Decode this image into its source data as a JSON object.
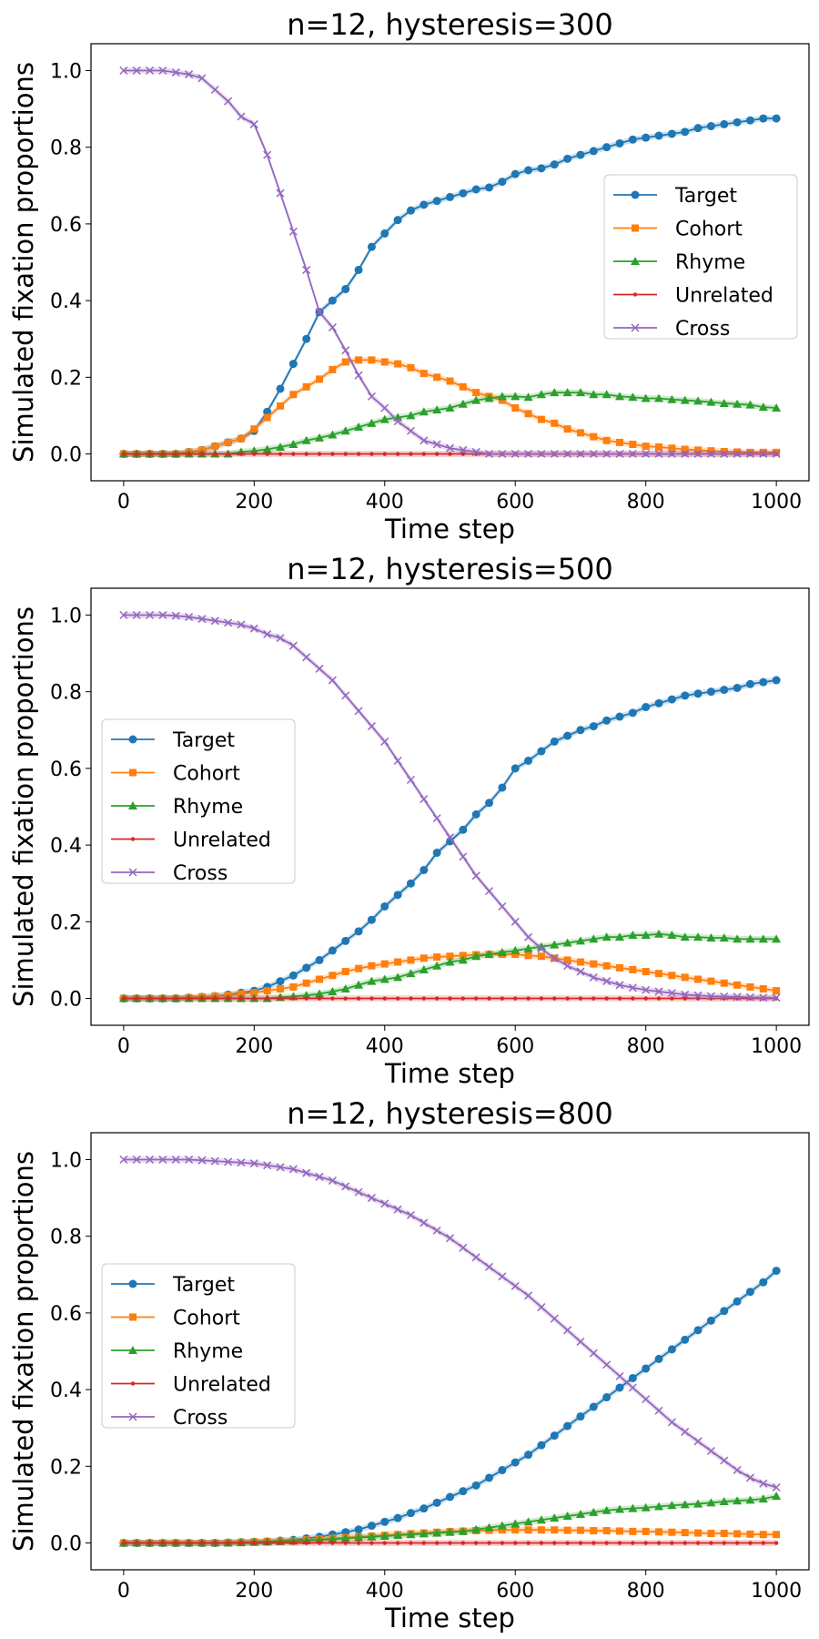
{
  "colors": {
    "Target": "#1f77b4",
    "Cohort": "#ff7f0e",
    "Rhyme": "#2ca02c",
    "Unrelated": "#d62728",
    "Cross": "#9467bd"
  },
  "markers": {
    "Target": "circle",
    "Cohort": "square",
    "Rhyme": "triangle",
    "Unrelated": "dot",
    "Cross": "x"
  },
  "chart_data": [
    {
      "type": "line",
      "title": "n=12, hysteresis=300",
      "xlabel": "Time step",
      "ylabel": "Simulated fixation proportions",
      "xlim": [
        -50,
        1050
      ],
      "ylim": [
        -0.07,
        1.07
      ],
      "xticks": [
        "0",
        "200",
        "400",
        "600",
        "800",
        "1000"
      ],
      "yticks": [
        "0.0",
        "0.2",
        "0.4",
        "0.6",
        "0.8",
        "1.0"
      ],
      "legend_position": "right",
      "grid": false,
      "x": [
        0,
        20,
        40,
        60,
        80,
        100,
        120,
        140,
        160,
        180,
        200,
        220,
        240,
        260,
        280,
        300,
        320,
        340,
        360,
        380,
        400,
        420,
        440,
        460,
        480,
        500,
        520,
        540,
        560,
        580,
        600,
        620,
        640,
        660,
        680,
        700,
        720,
        740,
        760,
        780,
        800,
        820,
        840,
        860,
        880,
        900,
        920,
        940,
        960,
        980,
        1000
      ],
      "series": [
        {
          "name": "Target",
          "values": [
            0,
            0,
            0,
            0,
            0,
            0.005,
            0.01,
            0.02,
            0.03,
            0.04,
            0.06,
            0.11,
            0.17,
            0.235,
            0.3,
            0.37,
            0.4,
            0.43,
            0.48,
            0.54,
            0.575,
            0.61,
            0.635,
            0.65,
            0.66,
            0.67,
            0.68,
            0.69,
            0.695,
            0.71,
            0.73,
            0.74,
            0.745,
            0.755,
            0.77,
            0.78,
            0.79,
            0.8,
            0.81,
            0.82,
            0.825,
            0.83,
            0.835,
            0.84,
            0.85,
            0.855,
            0.86,
            0.865,
            0.87,
            0.875,
            0.875
          ]
        },
        {
          "name": "Cohort",
          "values": [
            0,
            0,
            0,
            0,
            0,
            0.005,
            0.01,
            0.02,
            0.03,
            0.04,
            0.065,
            0.095,
            0.125,
            0.155,
            0.175,
            0.195,
            0.22,
            0.24,
            0.245,
            0.245,
            0.24,
            0.235,
            0.225,
            0.21,
            0.2,
            0.19,
            0.175,
            0.16,
            0.15,
            0.14,
            0.12,
            0.105,
            0.09,
            0.08,
            0.065,
            0.055,
            0.045,
            0.035,
            0.03,
            0.025,
            0.02,
            0.018,
            0.015,
            0.012,
            0.01,
            0.008,
            0.006,
            0.005,
            0.004,
            0.004,
            0.004
          ]
        },
        {
          "name": "Rhyme",
          "values": [
            0,
            0,
            0,
            0,
            0,
            0,
            0,
            0,
            0,
            0.005,
            0.008,
            0.012,
            0.018,
            0.025,
            0.035,
            0.042,
            0.05,
            0.06,
            0.07,
            0.08,
            0.09,
            0.095,
            0.1,
            0.11,
            0.115,
            0.12,
            0.13,
            0.14,
            0.145,
            0.15,
            0.15,
            0.148,
            0.155,
            0.16,
            0.16,
            0.16,
            0.155,
            0.155,
            0.15,
            0.148,
            0.145,
            0.145,
            0.142,
            0.14,
            0.138,
            0.135,
            0.132,
            0.13,
            0.128,
            0.122,
            0.12
          ]
        },
        {
          "name": "Unrelated",
          "values": [
            0,
            0,
            0,
            0,
            0,
            0,
            0,
            0,
            0,
            0,
            0,
            0,
            0,
            0,
            0,
            0,
            0,
            0,
            0,
            0,
            0,
            0,
            0,
            0,
            0,
            0,
            0,
            0,
            0,
            0,
            0,
            0,
            0,
            0,
            0,
            0,
            0,
            0,
            0,
            0,
            0,
            0,
            0,
            0,
            0,
            0,
            0,
            0,
            0,
            0,
            0
          ]
        },
        {
          "name": "Cross",
          "values": [
            1.0,
            1.0,
            1.0,
            1.0,
            0.995,
            0.99,
            0.98,
            0.95,
            0.92,
            0.88,
            0.86,
            0.78,
            0.68,
            0.58,
            0.48,
            0.37,
            0.33,
            0.27,
            0.205,
            0.15,
            0.12,
            0.085,
            0.06,
            0.035,
            0.025,
            0.015,
            0.01,
            0.005,
            0,
            0,
            0,
            0,
            0,
            0,
            0,
            0,
            0,
            0,
            0,
            0,
            0,
            0,
            0,
            0,
            0,
            0,
            0,
            0,
            0,
            0,
            0
          ]
        }
      ]
    },
    {
      "type": "line",
      "title": "n=12, hysteresis=500",
      "xlabel": "Time step",
      "ylabel": "Simulated fixation proportions",
      "xlim": [
        -50,
        1050
      ],
      "ylim": [
        -0.07,
        1.07
      ],
      "xticks": [
        "0",
        "200",
        "400",
        "600",
        "800",
        "1000"
      ],
      "yticks": [
        "0.0",
        "0.2",
        "0.4",
        "0.6",
        "0.8",
        "1.0"
      ],
      "legend_position": "left",
      "grid": false,
      "x": [
        0,
        20,
        40,
        60,
        80,
        100,
        120,
        140,
        160,
        180,
        200,
        220,
        240,
        260,
        280,
        300,
        320,
        340,
        360,
        380,
        400,
        420,
        440,
        460,
        480,
        500,
        520,
        540,
        560,
        580,
        600,
        620,
        640,
        660,
        680,
        700,
        720,
        740,
        760,
        780,
        800,
        820,
        840,
        860,
        880,
        900,
        920,
        940,
        960,
        980,
        1000
      ],
      "series": [
        {
          "name": "Target",
          "values": [
            0,
            0,
            0,
            0,
            0,
            0.002,
            0.004,
            0.006,
            0.01,
            0.015,
            0.02,
            0.03,
            0.045,
            0.06,
            0.08,
            0.1,
            0.125,
            0.15,
            0.175,
            0.205,
            0.24,
            0.27,
            0.3,
            0.335,
            0.38,
            0.41,
            0.44,
            0.48,
            0.51,
            0.55,
            0.6,
            0.62,
            0.645,
            0.67,
            0.685,
            0.7,
            0.71,
            0.725,
            0.735,
            0.745,
            0.76,
            0.77,
            0.78,
            0.79,
            0.795,
            0.8,
            0.805,
            0.81,
            0.82,
            0.825,
            0.83
          ]
        },
        {
          "name": "Cohort",
          "values": [
            0,
            0,
            0,
            0,
            0,
            0.002,
            0.004,
            0.006,
            0.008,
            0.012,
            0.015,
            0.02,
            0.025,
            0.03,
            0.04,
            0.05,
            0.06,
            0.07,
            0.078,
            0.085,
            0.09,
            0.095,
            0.1,
            0.105,
            0.108,
            0.11,
            0.112,
            0.114,
            0.115,
            0.115,
            0.115,
            0.112,
            0.11,
            0.105,
            0.1,
            0.095,
            0.09,
            0.085,
            0.08,
            0.075,
            0.07,
            0.065,
            0.06,
            0.055,
            0.05,
            0.045,
            0.04,
            0.035,
            0.03,
            0.025,
            0.02
          ]
        },
        {
          "name": "Rhyme",
          "values": [
            0,
            0,
            0,
            0,
            0,
            0,
            0,
            0,
            0,
            0,
            0,
            0,
            0.003,
            0.005,
            0.008,
            0.012,
            0.018,
            0.025,
            0.035,
            0.045,
            0.05,
            0.055,
            0.065,
            0.075,
            0.085,
            0.095,
            0.1,
            0.11,
            0.115,
            0.12,
            0.125,
            0.13,
            0.135,
            0.14,
            0.145,
            0.15,
            0.155,
            0.16,
            0.16,
            0.165,
            0.165,
            0.168,
            0.165,
            0.16,
            0.16,
            0.158,
            0.158,
            0.155,
            0.155,
            0.155,
            0.155
          ]
        },
        {
          "name": "Unrelated",
          "values": [
            0,
            0,
            0,
            0,
            0,
            0,
            0,
            0,
            0,
            0,
            0,
            0,
            0,
            0,
            0,
            0,
            0,
            0,
            0,
            0,
            0,
            0,
            0,
            0,
            0,
            0,
            0,
            0,
            0,
            0,
            0,
            0,
            0,
            0,
            0,
            0,
            0,
            0,
            0,
            0,
            0,
            0,
            0,
            0,
            0,
            0,
            0,
            0,
            0,
            0,
            0
          ]
        },
        {
          "name": "Cross",
          "values": [
            1.0,
            1.0,
            1.0,
            1.0,
            0.998,
            0.995,
            0.99,
            0.985,
            0.98,
            0.975,
            0.965,
            0.95,
            0.94,
            0.92,
            0.89,
            0.86,
            0.83,
            0.79,
            0.75,
            0.71,
            0.67,
            0.62,
            0.57,
            0.52,
            0.47,
            0.42,
            0.37,
            0.32,
            0.28,
            0.24,
            0.2,
            0.16,
            0.13,
            0.105,
            0.085,
            0.07,
            0.055,
            0.045,
            0.035,
            0.028,
            0.022,
            0.018,
            0.014,
            0.01,
            0.008,
            0.006,
            0.005,
            0.004,
            0.003,
            0.002,
            0.002
          ]
        }
      ]
    },
    {
      "type": "line",
      "title": "n=12, hysteresis=800",
      "xlabel": "Time step",
      "ylabel": "Simulated fixation proportions",
      "xlim": [
        -50,
        1050
      ],
      "ylim": [
        -0.07,
        1.07
      ],
      "xticks": [
        "0",
        "200",
        "400",
        "600",
        "800",
        "1000"
      ],
      "yticks": [
        "0.0",
        "0.2",
        "0.4",
        "0.6",
        "0.8",
        "1.0"
      ],
      "legend_position": "left",
      "grid": false,
      "x": [
        0,
        20,
        40,
        60,
        80,
        100,
        120,
        140,
        160,
        180,
        200,
        220,
        240,
        260,
        280,
        300,
        320,
        340,
        360,
        380,
        400,
        420,
        440,
        460,
        480,
        500,
        520,
        540,
        560,
        580,
        600,
        620,
        640,
        660,
        680,
        700,
        720,
        740,
        760,
        780,
        800,
        820,
        840,
        860,
        880,
        900,
        920,
        940,
        960,
        980,
        1000
      ],
      "series": [
        {
          "name": "Target",
          "values": [
            0,
            0,
            0,
            0,
            0,
            0,
            0,
            0,
            0.001,
            0.002,
            0.003,
            0.004,
            0.006,
            0.008,
            0.012,
            0.016,
            0.022,
            0.028,
            0.035,
            0.045,
            0.055,
            0.065,
            0.078,
            0.09,
            0.105,
            0.12,
            0.135,
            0.15,
            0.17,
            0.19,
            0.21,
            0.23,
            0.255,
            0.28,
            0.305,
            0.33,
            0.355,
            0.38,
            0.405,
            0.43,
            0.455,
            0.48,
            0.505,
            0.53,
            0.555,
            0.58,
            0.605,
            0.63,
            0.655,
            0.68,
            0.71
          ]
        },
        {
          "name": "Cohort",
          "values": [
            0,
            0,
            0,
            0,
            0,
            0,
            0,
            0,
            0.001,
            0.002,
            0.003,
            0.004,
            0.005,
            0.006,
            0.008,
            0.01,
            0.012,
            0.014,
            0.016,
            0.018,
            0.02,
            0.022,
            0.024,
            0.026,
            0.028,
            0.03,
            0.031,
            0.032,
            0.033,
            0.034,
            0.034,
            0.034,
            0.034,
            0.034,
            0.033,
            0.033,
            0.032,
            0.032,
            0.031,
            0.03,
            0.03,
            0.029,
            0.028,
            0.027,
            0.026,
            0.025,
            0.025,
            0.024,
            0.023,
            0.022,
            0.022
          ]
        },
        {
          "name": "Rhyme",
          "values": [
            0,
            0,
            0,
            0,
            0,
            0,
            0,
            0,
            0,
            0.001,
            0.002,
            0.003,
            0.004,
            0.005,
            0.006,
            0.008,
            0.01,
            0.012,
            0.014,
            0.016,
            0.018,
            0.02,
            0.022,
            0.024,
            0.026,
            0.028,
            0.03,
            0.035,
            0.04,
            0.045,
            0.05,
            0.055,
            0.06,
            0.065,
            0.07,
            0.075,
            0.08,
            0.085,
            0.088,
            0.09,
            0.092,
            0.095,
            0.098,
            0.1,
            0.102,
            0.105,
            0.108,
            0.11,
            0.112,
            0.115,
            0.122
          ]
        },
        {
          "name": "Unrelated",
          "values": [
            0,
            0,
            0,
            0,
            0,
            0,
            0,
            0,
            0,
            0,
            0,
            0,
            0,
            0,
            0,
            0,
            0,
            0,
            0,
            0,
            0,
            0,
            0,
            0,
            0,
            0,
            0,
            0,
            0,
            0,
            0,
            0,
            0,
            0,
            0,
            0,
            0,
            0,
            0,
            0,
            0,
            0,
            0,
            0,
            0,
            0,
            0,
            0,
            0,
            0,
            0
          ]
        },
        {
          "name": "Cross",
          "values": [
            1.0,
            1.0,
            1.0,
            1.0,
            1.0,
            1.0,
            0.998,
            0.996,
            0.994,
            0.992,
            0.99,
            0.985,
            0.98,
            0.975,
            0.965,
            0.955,
            0.945,
            0.93,
            0.915,
            0.9,
            0.885,
            0.87,
            0.855,
            0.835,
            0.815,
            0.795,
            0.77,
            0.745,
            0.72,
            0.695,
            0.67,
            0.645,
            0.615,
            0.585,
            0.555,
            0.525,
            0.495,
            0.465,
            0.435,
            0.405,
            0.375,
            0.345,
            0.315,
            0.29,
            0.265,
            0.24,
            0.215,
            0.19,
            0.17,
            0.155,
            0.145
          ]
        }
      ]
    }
  ]
}
